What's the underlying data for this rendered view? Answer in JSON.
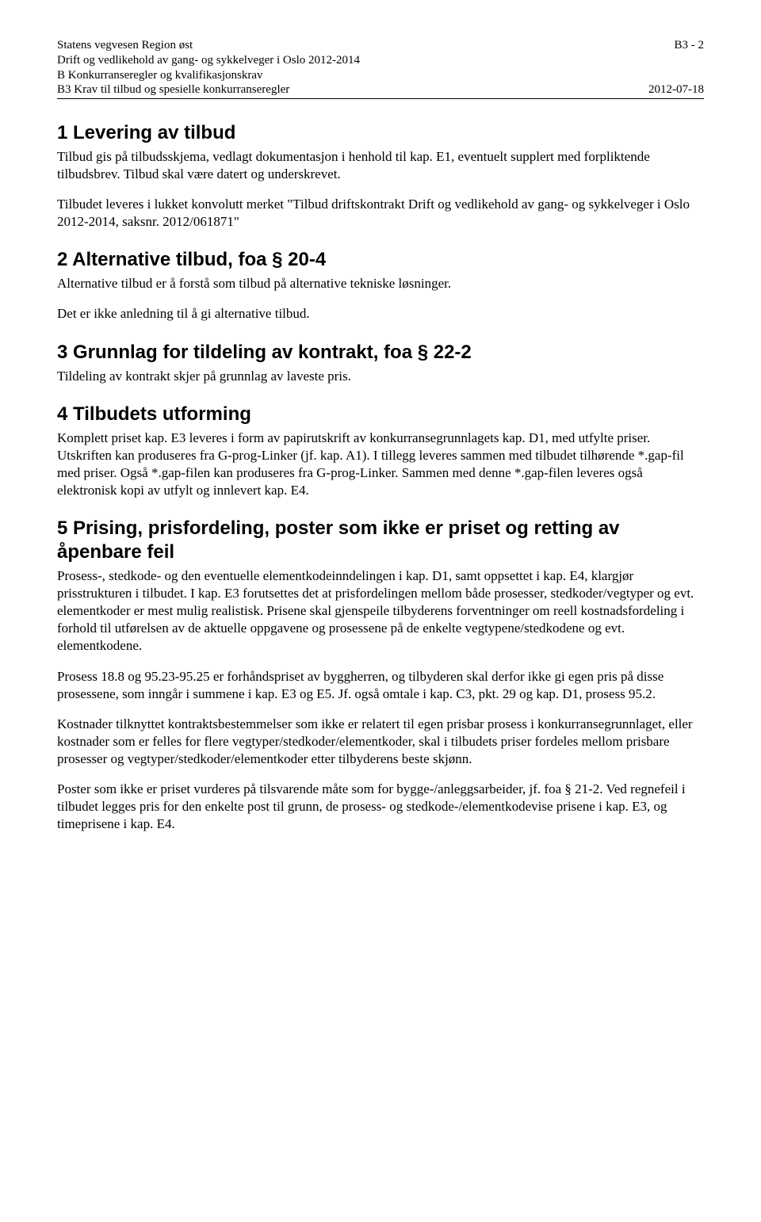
{
  "header": {
    "line1_left": "Statens vegvesen Region øst",
    "line1_right": "B3 - 2",
    "line2": "Drift og vedlikehold av gang- og sykkelveger i Oslo 2012-2014",
    "line3": "B Konkurranseregler og kvalifikasjonskrav",
    "line4_left": "B3 Krav til tilbud og spesielle konkurranseregler",
    "line4_right": "2012-07-18"
  },
  "sections": {
    "s1": {
      "heading": "1  Levering av tilbud",
      "p1": "Tilbud gis på tilbudsskjema, vedlagt dokumentasjon i henhold til kap. E1, eventuelt supplert med forpliktende tilbudsbrev. Tilbud skal være datert og underskrevet.",
      "p2": "Tilbudet leveres i lukket konvolutt merket \"Tilbud driftskontrakt Drift og vedlikehold av gang- og sykkelveger i Oslo 2012-2014, saksnr. 2012/061871\""
    },
    "s2": {
      "heading": "2  Alternative tilbud, foa § 20-4",
      "p1": "Alternative tilbud er å forstå som tilbud på alternative tekniske løsninger.",
      "p2": "Det er ikke anledning til å gi alternative tilbud."
    },
    "s3": {
      "heading": "3  Grunnlag for tildeling av kontrakt, foa § 22-2",
      "p1": "Tildeling av kontrakt skjer på grunnlag av laveste pris."
    },
    "s4": {
      "heading": "4  Tilbudets utforming",
      "p1": "Komplett priset kap. E3 leveres i form av papirutskrift av konkurransegrunnlagets kap. D1, med utfylte priser. Utskriften kan produseres fra G-prog-Linker (jf. kap. A1). I tillegg leveres sammen med tilbudet tilhørende *.gap-fil med priser. Også *.gap-filen kan produseres fra G-prog-Linker. Sammen med denne *.gap-filen leveres også elektronisk kopi av utfylt og innlevert kap. E4."
    },
    "s5": {
      "heading": "5  Prising, prisfordeling, poster som ikke er priset og retting av åpenbare feil",
      "p1": "Prosess-, stedkode- og den eventuelle elementkodeinndelingen i kap. D1, samt oppsettet i kap. E4, klargjør prisstrukturen i tilbudet. I kap. E3 forutsettes det at prisfordelingen mellom både prosesser, stedkoder/vegtyper og evt. elementkoder er mest mulig realistisk. Prisene skal gjenspeile tilbyderens forventninger om reell kostnadsfordeling i forhold til utførelsen av de aktuelle oppgavene og prosessene på de enkelte vegtypene/stedkodene og evt. elementkodene.",
      "p2": "Prosess 18.8 og 95.23-95.25 er forhåndspriset av byggherren, og tilbyderen skal derfor ikke gi egen pris på disse prosessene, som inngår i summene i kap. E3 og E5. Jf. også omtale i kap. C3, pkt. 29 og kap. D1, prosess 95.2.",
      "p3": "Kostnader tilknyttet kontraktsbestemmelser som ikke er relatert til egen prisbar prosess i konkurransegrunnlaget, eller kostnader som er felles for flere vegtyper/stedkoder/elementkoder, skal i tilbudets priser fordeles mellom prisbare prosesser og vegtyper/stedkoder/elementkoder etter tilbyderens beste skjønn.",
      "p4": "Poster som ikke er priset vurderes på tilsvarende måte som for bygge-/anleggsarbeider, jf. foa § 21-2. Ved regnefeil i tilbudet legges pris for den enkelte post til grunn, de prosess- og stedkode-/elementkodevise prisene i kap. E3, og timeprisene i kap. E4."
    }
  }
}
